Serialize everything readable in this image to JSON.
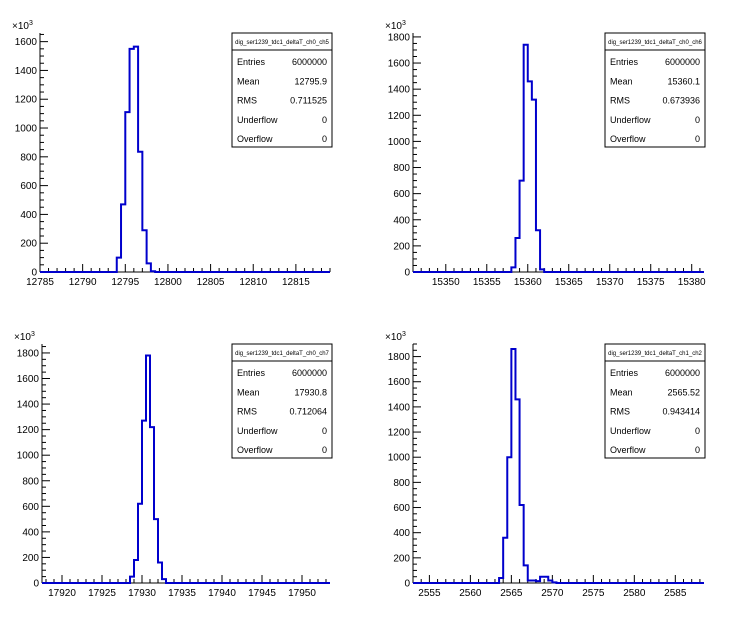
{
  "chart_data": [
    {
      "type": "histogram",
      "exponent_label": "10",
      "exponent_power": "3",
      "xlim": [
        12785,
        12819
      ],
      "ylim": [
        0,
        1660
      ],
      "x_ticks": [
        "12785",
        "12790",
        "12795",
        "12800",
        "12805",
        "12810",
        "12815"
      ],
      "x_tick_values": [
        12785,
        12790,
        12795,
        12800,
        12805,
        12810,
        12815
      ],
      "y_ticks": [
        "0",
        "200",
        "400",
        "600",
        "800",
        "1000",
        "1200",
        "1400",
        "1600"
      ],
      "y_tick_values": [
        0,
        200,
        400,
        600,
        800,
        1000,
        1200,
        1400,
        1600
      ],
      "bin_width": 0.5,
      "bins": [
        {
          "x": 12793.5,
          "y": 0
        },
        {
          "x": 12794.0,
          "y": 100
        },
        {
          "x": 12794.5,
          "y": 470
        },
        {
          "x": 12795.0,
          "y": 1110
        },
        {
          "x": 12795.5,
          "y": 1550
        },
        {
          "x": 12796.0,
          "y": 1565
        },
        {
          "x": 12796.5,
          "y": 835
        },
        {
          "x": 12797.0,
          "y": 290
        },
        {
          "x": 12797.5,
          "y": 60
        },
        {
          "x": 12798.0,
          "y": 5
        }
      ],
      "stats": {
        "title": "dig_ser1239_tdc1_deltaT_ch0_ch5",
        "rows": [
          {
            "label": "Entries",
            "value": "6000000"
          },
          {
            "label": "Mean",
            "value": "12795.9"
          },
          {
            "label": "RMS",
            "value": "0.711525"
          },
          {
            "label": "Underflow",
            "value": "0"
          },
          {
            "label": "Overflow",
            "value": "0"
          }
        ]
      }
    },
    {
      "type": "histogram",
      "exponent_label": "10",
      "exponent_power": "3",
      "xlim": [
        15346,
        15381.5
      ],
      "ylim": [
        0,
        1830
      ],
      "x_ticks": [
        "15350",
        "15355",
        "15360",
        "15365",
        "15370",
        "15375",
        "15380"
      ],
      "x_tick_values": [
        15350,
        15355,
        15360,
        15365,
        15370,
        15375,
        15380
      ],
      "y_ticks": [
        "0",
        "200",
        "400",
        "600",
        "800",
        "1000",
        "1200",
        "1400",
        "1600",
        "1800"
      ],
      "y_tick_values": [
        0,
        200,
        400,
        600,
        800,
        1000,
        1200,
        1400,
        1600,
        1800
      ],
      "bin_width": 0.5,
      "bins": [
        {
          "x": 15358.0,
          "y": 35
        },
        {
          "x": 15358.5,
          "y": 260
        },
        {
          "x": 15359.0,
          "y": 700
        },
        {
          "x": 15359.5,
          "y": 1740
        },
        {
          "x": 15360.0,
          "y": 1460
        },
        {
          "x": 15360.5,
          "y": 1320
        },
        {
          "x": 15361.0,
          "y": 320
        },
        {
          "x": 15361.5,
          "y": 20
        }
      ],
      "stats": {
        "title": "dig_ser1239_tdc1_deltaT_ch0_ch6",
        "rows": [
          {
            "label": "Entries",
            "value": "6000000"
          },
          {
            "label": "Mean",
            "value": "15360.1"
          },
          {
            "label": "RMS",
            "value": "0.673936"
          },
          {
            "label": "Underflow",
            "value": "0"
          },
          {
            "label": "Overflow",
            "value": "0"
          }
        ]
      }
    },
    {
      "type": "histogram",
      "exponent_label": "10",
      "exponent_power": "3",
      "xlim": [
        17917.5,
        17953.5
      ],
      "ylim": [
        0,
        1870
      ],
      "x_ticks": [
        "17920",
        "17925",
        "17930",
        "17935",
        "17940",
        "17945",
        "17950"
      ],
      "x_tick_values": [
        17920,
        17925,
        17930,
        17935,
        17940,
        17945,
        17950
      ],
      "y_ticks": [
        "0",
        "200",
        "400",
        "600",
        "800",
        "1000",
        "1200",
        "1400",
        "1600",
        "1800"
      ],
      "y_tick_values": [
        0,
        200,
        400,
        600,
        800,
        1000,
        1200,
        1400,
        1600,
        1800
      ],
      "bin_width": 0.5,
      "bins": [
        {
          "x": 17928.5,
          "y": 50
        },
        {
          "x": 17929.0,
          "y": 180
        },
        {
          "x": 17929.5,
          "y": 620
        },
        {
          "x": 17930.0,
          "y": 1270
        },
        {
          "x": 17930.5,
          "y": 1780
        },
        {
          "x": 17931.0,
          "y": 1220
        },
        {
          "x": 17931.5,
          "y": 500
        },
        {
          "x": 17932.0,
          "y": 160
        },
        {
          "x": 17932.5,
          "y": 30
        }
      ],
      "stats": {
        "title": "dig_ser1239_tdc1_deltaT_ch0_ch7",
        "rows": [
          {
            "label": "Entries",
            "value": "6000000"
          },
          {
            "label": "Mean",
            "value": "17930.8"
          },
          {
            "label": "RMS",
            "value": "0.712064"
          },
          {
            "label": "Underflow",
            "value": "0"
          },
          {
            "label": "Overflow",
            "value": "0"
          }
        ]
      }
    },
    {
      "type": "histogram",
      "exponent_label": "10",
      "exponent_power": "3",
      "xlim": [
        2553,
        2588.5
      ],
      "ylim": [
        0,
        1900
      ],
      "x_ticks": [
        "2555",
        "2560",
        "2565",
        "2570",
        "2575",
        "2580",
        "2585"
      ],
      "x_tick_values": [
        2555,
        2560,
        2565,
        2570,
        2575,
        2580,
        2585
      ],
      "y_ticks": [
        "0",
        "200",
        "400",
        "600",
        "800",
        "1000",
        "1200",
        "1400",
        "1600",
        "1800"
      ],
      "y_tick_values": [
        0,
        200,
        400,
        600,
        800,
        1000,
        1200,
        1400,
        1600,
        1800
      ],
      "bin_width": 0.5,
      "bins": [
        {
          "x": 2563.5,
          "y": 40
        },
        {
          "x": 2564.0,
          "y": 360
        },
        {
          "x": 2564.5,
          "y": 1000
        },
        {
          "x": 2565.0,
          "y": 1860
        },
        {
          "x": 2565.5,
          "y": 1460
        },
        {
          "x": 2566.0,
          "y": 620
        },
        {
          "x": 2566.5,
          "y": 140
        },
        {
          "x": 2567.0,
          "y": 20
        },
        {
          "x": 2568.0,
          "y": 15
        },
        {
          "x": 2568.5,
          "y": 50
        },
        {
          "x": 2569.0,
          "y": 50
        },
        {
          "x": 2569.5,
          "y": 20
        },
        {
          "x": 2570.0,
          "y": 5
        }
      ],
      "stats": {
        "title": "dig_ser1239_tdc1_deltaT_ch1_ch2",
        "rows": [
          {
            "label": "Entries",
            "value": "6000000"
          },
          {
            "label": "Mean",
            "value": "2565.52"
          },
          {
            "label": "RMS",
            "value": "0.943414"
          },
          {
            "label": "Underflow",
            "value": "0"
          },
          {
            "label": "Overflow",
            "value": "0"
          }
        ]
      }
    }
  ],
  "colors": {
    "line": "#0000cc",
    "axis": "#000000",
    "background": "#ffffff"
  }
}
